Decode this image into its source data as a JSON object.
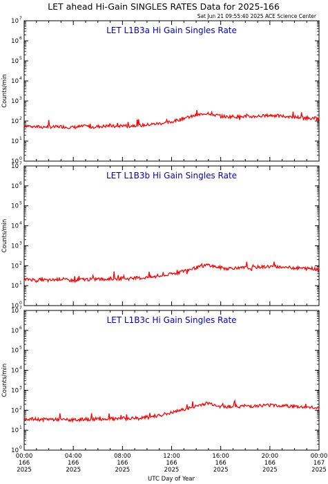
{
  "header": {
    "title": "LET ahead Hi-Gain SINGLES RATES Data for 2025-166",
    "timestamp": "Sat Jun 21 09:55:40 2025 ACE Science Center"
  },
  "colors": {
    "data_line": "#ff0000",
    "panel_title": "#0000cc",
    "axes": "#000000"
  },
  "chart_data": [
    {
      "type": "line",
      "title": "LET L1B3a Hi Gain Singles Rate",
      "ylabel": "Counts/min",
      "xlabel": "UTC Day of Year",
      "yscale": "log",
      "ylim": [
        1,
        10000000
      ],
      "xlim": [
        0,
        24
      ],
      "series": [
        {
          "x": [
            0,
            0.5,
            1,
            1.5,
            2,
            2.5,
            3,
            3.5,
            4,
            4.5,
            5,
            5.5,
            6,
            6.5,
            7,
            7.5,
            8,
            8.5,
            9,
            9.5,
            10,
            10.5,
            11,
            11.5,
            12,
            12.5,
            13,
            13.5,
            14,
            14.5,
            15,
            15.5,
            16,
            16.5,
            17,
            17.5,
            18,
            18.5,
            19,
            19.5,
            20,
            20.5,
            21,
            21.5,
            22,
            22.5,
            23,
            23.5,
            24
          ],
          "values": [
            60,
            55,
            52,
            50,
            52,
            50,
            53,
            50,
            48,
            52,
            55,
            50,
            53,
            55,
            58,
            52,
            60,
            55,
            62,
            60,
            65,
            70,
            75,
            80,
            90,
            110,
            140,
            160,
            190,
            220,
            250,
            200,
            180,
            160,
            170,
            160,
            170,
            165,
            175,
            180,
            190,
            185,
            175,
            170,
            160,
            150,
            145,
            140,
            130
          ]
        }
      ]
    },
    {
      "type": "line",
      "title": "LET L1B3b Hi Gain Singles Rate",
      "ylabel": "Counts/min",
      "xlabel": "UTC Day of Year",
      "yscale": "log",
      "ylim": [
        1,
        10000000
      ],
      "xlim": [
        0,
        24
      ],
      "series": [
        {
          "x": [
            0,
            0.5,
            1,
            1.5,
            2,
            2.5,
            3,
            3.5,
            4,
            4.5,
            5,
            5.5,
            6,
            6.5,
            7,
            7.5,
            8,
            8.5,
            9,
            9.5,
            10,
            10.5,
            11,
            11.5,
            12,
            12.5,
            13,
            13.5,
            14,
            14.5,
            15,
            15.5,
            16,
            16.5,
            17,
            17.5,
            18,
            18.5,
            19,
            19.5,
            20,
            20.5,
            21,
            21.5,
            22,
            22.5,
            23,
            23.5,
            24
          ],
          "values": [
            20,
            21,
            19,
            20,
            18,
            20,
            22,
            19,
            18,
            20,
            21,
            20,
            22,
            20,
            23,
            21,
            24,
            22,
            25,
            24,
            26,
            27,
            30,
            33,
            38,
            45,
            55,
            65,
            80,
            95,
            110,
            90,
            80,
            72,
            78,
            75,
            80,
            78,
            85,
            88,
            92,
            90,
            85,
            82,
            78,
            75,
            72,
            70,
            65
          ]
        }
      ]
    },
    {
      "type": "line",
      "title": "LET L1B3c Hi Gain Singles Rate",
      "ylabel": "Counts/min",
      "xlabel": "UTC Day of Year",
      "yscale": "log",
      "ylim": [
        1,
        10000000
      ],
      "xlim": [
        0,
        24
      ],
      "series": [
        {
          "x": [
            0,
            0.5,
            1,
            1.5,
            2,
            2.5,
            3,
            3.5,
            4,
            4.5,
            5,
            5.5,
            6,
            6.5,
            7,
            7.5,
            8,
            8.5,
            9,
            9.5,
            10,
            10.5,
            11,
            11.5,
            12,
            12.5,
            13,
            13.5,
            14,
            14.5,
            15,
            15.5,
            16,
            16.5,
            17,
            17.5,
            18,
            18.5,
            19,
            19.5,
            20,
            20.5,
            21,
            21.5,
            22,
            22.5,
            23,
            23.5,
            24
          ],
          "values": [
            38,
            36,
            35,
            34,
            36,
            34,
            35,
            33,
            32,
            34,
            36,
            35,
            37,
            36,
            38,
            35,
            40,
            37,
            42,
            40,
            45,
            50,
            58,
            65,
            75,
            90,
            110,
            130,
            160,
            200,
            230,
            190,
            165,
            150,
            160,
            155,
            165,
            160,
            170,
            175,
            180,
            178,
            170,
            165,
            155,
            145,
            140,
            135,
            125
          ]
        }
      ]
    }
  ],
  "y_ticks": {
    "base": "10",
    "exponents": [
      "0",
      "1",
      "2",
      "3",
      "4",
      "5",
      "6",
      "7"
    ]
  },
  "x_axis": {
    "xlabel": "UTC Day of Year",
    "ticks": [
      {
        "time": "00:00",
        "day": "166",
        "year": "2025",
        "hour": 0
      },
      {
        "time": "04:00",
        "day": "166",
        "year": "2025",
        "hour": 4
      },
      {
        "time": "08:00",
        "day": "166",
        "year": "2025",
        "hour": 8
      },
      {
        "time": "12:00",
        "day": "166",
        "year": "2025",
        "hour": 12
      },
      {
        "time": "16:00",
        "day": "166",
        "year": "2025",
        "hour": 16
      },
      {
        "time": "20:00",
        "day": "166",
        "year": "2025",
        "hour": 20
      },
      {
        "time": "00:00",
        "day": "167",
        "year": "2025",
        "hour": 24
      }
    ]
  }
}
